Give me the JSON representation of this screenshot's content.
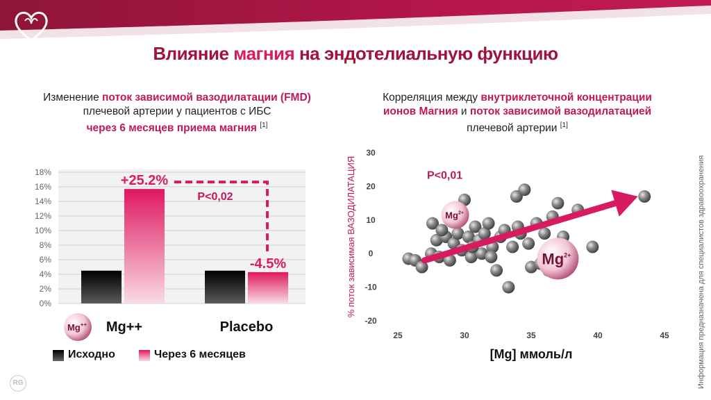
{
  "header": {
    "title_part1": "Влияние ",
    "title_accent": "магния",
    "title_part2": " на эндотелиальную функцию"
  },
  "left_panel": {
    "subtitle_line1_a": "Изменение ",
    "subtitle_line1_hl": "поток зависимой вазодилатации (FMD)",
    "subtitle_line2": "плечевой артерии у пациентов с ИБС",
    "subtitle_line3_hl": "через 6 месяцев приема магния",
    "subtitle_ref": "[1]"
  },
  "right_panel": {
    "subtitle_line1_a": "Корреляция между ",
    "subtitle_line1_hl": "внутриклеточной концентрации",
    "subtitle_line2_hl1": "ионов Магния",
    "subtitle_line2_b": " и ",
    "subtitle_line2_hl2": "поток зависимой вазодилатацией",
    "subtitle_line3": "плечевой артерии",
    "subtitle_ref": "[1]"
  },
  "legend": {
    "baseline": "Исходно",
    "after": "Через 6 месяцев"
  },
  "side_note": "Информация предназначена для специалистов здравоохранения",
  "logo_text": "RG",
  "colors": {
    "brand": "#a0143c",
    "accent": "#d81b60",
    "baseline": "#111111",
    "after": "#e91e63"
  },
  "chart_data": [
    {
      "type": "bar",
      "categories": [
        "Mg++",
        "Placebo"
      ],
      "series": [
        {
          "name": "Исходно",
          "values": [
            4.5,
            4.5
          ]
        },
        {
          "name": "Через 6 месяцев",
          "values": [
            15.7,
            4.3
          ]
        }
      ],
      "ylim": [
        0,
        18
      ],
      "yticks": [
        "0%",
        "2%",
        "4%",
        "6%",
        "8%",
        "10%",
        "12%",
        "14%",
        "16%",
        "18%"
      ],
      "data_labels": [
        "+25.2%",
        "-4.5%"
      ],
      "annotation": "P<0,02",
      "badge": "Mg",
      "grid": true
    },
    {
      "type": "scatter",
      "xlabel": "[Mg] ммоль/л",
      "ylabel": "% поток зависимая ВАЗОДИЛАТАЦИЯ",
      "xlim": [
        25,
        45
      ],
      "ylim": [
        -20,
        30
      ],
      "xticks": [
        25,
        30,
        35,
        40,
        45
      ],
      "yticks": [
        30,
        20,
        10,
        0,
        -10,
        -20
      ],
      "annotation": "P<0,01",
      "badge_small": "Mg",
      "badge_large": "Mg",
      "trend": {
        "x": [
          27,
          43
        ],
        "y": [
          -2,
          17
        ]
      },
      "points": [
        {
          "x": 25.8,
          "y": -1.5
        },
        {
          "x": 26.3,
          "y": -2
        },
        {
          "x": 26.8,
          "y": -4
        },
        {
          "x": 27.5,
          "y": 0
        },
        {
          "x": 27.9,
          "y": 4
        },
        {
          "x": 28.1,
          "y": -1
        },
        {
          "x": 27.6,
          "y": 9
        },
        {
          "x": 28.6,
          "y": 5
        },
        {
          "x": 28.9,
          "y": -2
        },
        {
          "x": 29.2,
          "y": 3
        },
        {
          "x": 29.5,
          "y": 6
        },
        {
          "x": 29.8,
          "y": 1
        },
        {
          "x": 30.0,
          "y": 16
        },
        {
          "x": 30.3,
          "y": 5
        },
        {
          "x": 30.5,
          "y": -1
        },
        {
          "x": 30.8,
          "y": 8
        },
        {
          "x": 31.1,
          "y": 4
        },
        {
          "x": 31.3,
          "y": 0
        },
        {
          "x": 31.5,
          "y": 6
        },
        {
          "x": 31.8,
          "y": 9
        },
        {
          "x": 32.1,
          "y": 2
        },
        {
          "x": 32.4,
          "y": -5
        },
        {
          "x": 32.7,
          "y": 5
        },
        {
          "x": 33.0,
          "y": 7
        },
        {
          "x": 33.3,
          "y": -10
        },
        {
          "x": 33.6,
          "y": 2
        },
        {
          "x": 33.9,
          "y": 17
        },
        {
          "x": 34.2,
          "y": 6
        },
        {
          "x": 34.5,
          "y": 19
        },
        {
          "x": 34.8,
          "y": 3
        },
        {
          "x": 34.0,
          "y": 8
        },
        {
          "x": 35.0,
          "y": -4
        },
        {
          "x": 35.4,
          "y": 9
        },
        {
          "x": 35.7,
          "y": -3
        },
        {
          "x": 36.0,
          "y": 6
        },
        {
          "x": 36.3,
          "y": -5
        },
        {
          "x": 36.6,
          "y": 11
        },
        {
          "x": 37.0,
          "y": 15
        },
        {
          "x": 37.4,
          "y": 5
        },
        {
          "x": 38.5,
          "y": 13
        },
        {
          "x": 39.6,
          "y": 2
        },
        {
          "x": 43.5,
          "y": 17
        },
        {
          "x": 28.3,
          "y": 7
        },
        {
          "x": 32.0,
          "y": -1
        },
        {
          "x": 30.6,
          "y": 2
        }
      ]
    }
  ]
}
